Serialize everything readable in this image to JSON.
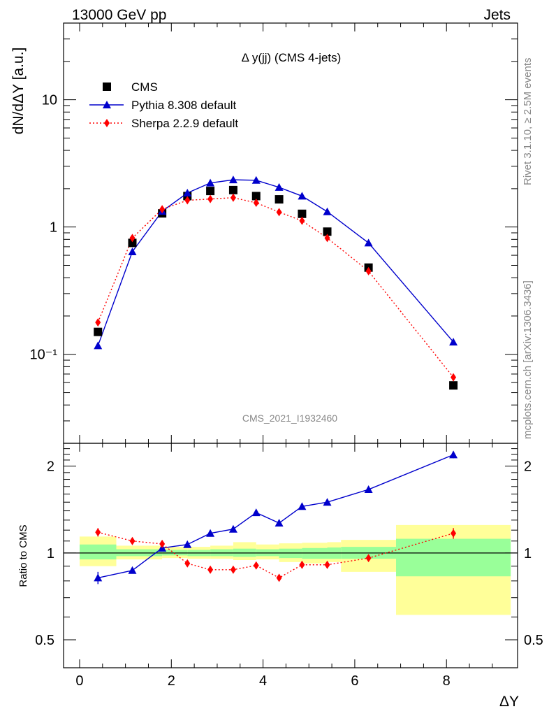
{
  "header": {
    "energy_label": "13000 GeV pp",
    "process_label": "Jets"
  },
  "side_labels": {
    "rivet": "Rivet 3.1.10, ≥ 2.5M events",
    "source": "mcplots.cern.ch [arXiv:1306.3436]"
  },
  "watermark": "CMS_2021_I1932460",
  "chart_data": [
    {
      "type": "scatter",
      "title": "Δ y(jj) (CMS 4-jets)",
      "ylabel": "dN/dΔY [a.u.]",
      "yscale": "log",
      "ylim": [
        0.02,
        40
      ],
      "xlim": [
        -0.35,
        9.55
      ],
      "ytick_labels": [
        "10⁻¹",
        "1",
        "10"
      ],
      "legend_position": "top-left",
      "series": [
        {
          "name": "CMS",
          "marker": "square",
          "color": "#000000",
          "x": [
            0.4,
            1.15,
            1.8,
            2.35,
            2.85,
            3.35,
            3.85,
            4.35,
            4.85,
            5.4,
            6.3,
            8.15
          ],
          "y": [
            0.15,
            0.75,
            1.28,
            1.75,
            1.92,
            1.95,
            1.75,
            1.65,
            1.27,
            0.92,
            0.48,
            0.057
          ]
        },
        {
          "name": "Pythia 8.308 default",
          "marker": "triangle",
          "color": "#0000cc",
          "line": "solid",
          "x": [
            0.4,
            1.15,
            1.8,
            2.35,
            2.85,
            3.35,
            3.85,
            4.35,
            4.85,
            5.4,
            6.3,
            8.15
          ],
          "y": [
            0.117,
            0.64,
            1.33,
            1.85,
            2.22,
            2.35,
            2.33,
            2.05,
            1.75,
            1.32,
            0.75,
            0.125
          ]
        },
        {
          "name": "Sherpa 2.2.9 default",
          "marker": "diamond",
          "color": "#ff0000",
          "line": "dotted",
          "x": [
            0.4,
            1.15,
            1.8,
            2.35,
            2.85,
            3.35,
            3.85,
            4.35,
            4.85,
            5.4,
            6.3,
            8.15
          ],
          "y": [
            0.178,
            0.82,
            1.38,
            1.62,
            1.66,
            1.7,
            1.55,
            1.31,
            1.12,
            0.82,
            0.45,
            0.066
          ]
        }
      ]
    },
    {
      "type": "scatter",
      "xlabel": "ΔY",
      "ylabel": "Ratio to CMS",
      "yscale": "log",
      "ylim": [
        0.4,
        2.4
      ],
      "xlim": [
        -0.35,
        9.55
      ],
      "x_tick_labels": [
        "0",
        "2",
        "4",
        "6",
        "8"
      ],
      "y_tick_labels": [
        "0.5",
        "1",
        "2"
      ],
      "uncertainty_bands": {
        "bins": [
          [
            0.0,
            0.8
          ],
          [
            0.8,
            1.8
          ],
          [
            1.8,
            2.35
          ],
          [
            2.35,
            2.85
          ],
          [
            2.85,
            3.35
          ],
          [
            3.35,
            3.85
          ],
          [
            3.85,
            4.35
          ],
          [
            4.35,
            4.85
          ],
          [
            4.85,
            5.4
          ],
          [
            5.4,
            5.7
          ],
          [
            5.7,
            6.9
          ],
          [
            6.9,
            9.4
          ]
        ],
        "inner_color": "#99ff99",
        "outer_color": "#ffff99",
        "inner": [
          [
            0.95,
            1.07
          ],
          [
            0.975,
            1.03
          ],
          [
            0.98,
            1.025
          ],
          [
            0.975,
            1.025
          ],
          [
            0.975,
            1.03
          ],
          [
            0.97,
            1.035
          ],
          [
            0.975,
            1.03
          ],
          [
            0.96,
            1.035
          ],
          [
            0.955,
            1.04
          ],
          [
            0.955,
            1.045
          ],
          [
            0.955,
            1.05
          ],
          [
            0.83,
            1.12
          ]
        ],
        "outer": [
          [
            0.9,
            1.14
          ],
          [
            0.95,
            1.06
          ],
          [
            0.96,
            1.05
          ],
          [
            0.955,
            1.05
          ],
          [
            0.955,
            1.06
          ],
          [
            0.945,
            1.09
          ],
          [
            0.95,
            1.07
          ],
          [
            0.93,
            1.08
          ],
          [
            0.92,
            1.085
          ],
          [
            0.93,
            1.09
          ],
          [
            0.86,
            1.11
          ],
          [
            0.61,
            1.25
          ]
        ]
      },
      "series": [
        {
          "name": "Pythia 8.308 default",
          "marker": "triangle",
          "color": "#0000cc",
          "line": "solid",
          "x": [
            0.4,
            1.15,
            1.8,
            2.35,
            2.85,
            3.35,
            3.85,
            4.35,
            4.85,
            5.4,
            6.3,
            8.15
          ],
          "y": [
            0.82,
            0.87,
            1.04,
            1.07,
            1.17,
            1.21,
            1.38,
            1.27,
            1.45,
            1.5,
            1.66,
            2.19
          ],
          "err": [
            0.04,
            0.0,
            0.0,
            0.0,
            0.0,
            0.0,
            0.0,
            0.0,
            0.0,
            0.0,
            0.0,
            0.06
          ]
        },
        {
          "name": "Sherpa 2.2.9 default",
          "marker": "diamond",
          "color": "#ff0000",
          "line": "dotted",
          "x": [
            0.4,
            1.15,
            1.8,
            2.35,
            2.85,
            3.35,
            3.85,
            4.35,
            4.85,
            5.4,
            6.3,
            8.15
          ],
          "y": [
            1.18,
            1.1,
            1.075,
            0.92,
            0.875,
            0.875,
            0.905,
            0.82,
            0.91,
            0.91,
            0.96,
            1.17
          ],
          "err": [
            0.04,
            0.0,
            0.0,
            0.0,
            0.0,
            0.0,
            0.0,
            0.0,
            0.0,
            0.0,
            0.0,
            0.05
          ]
        }
      ]
    }
  ]
}
